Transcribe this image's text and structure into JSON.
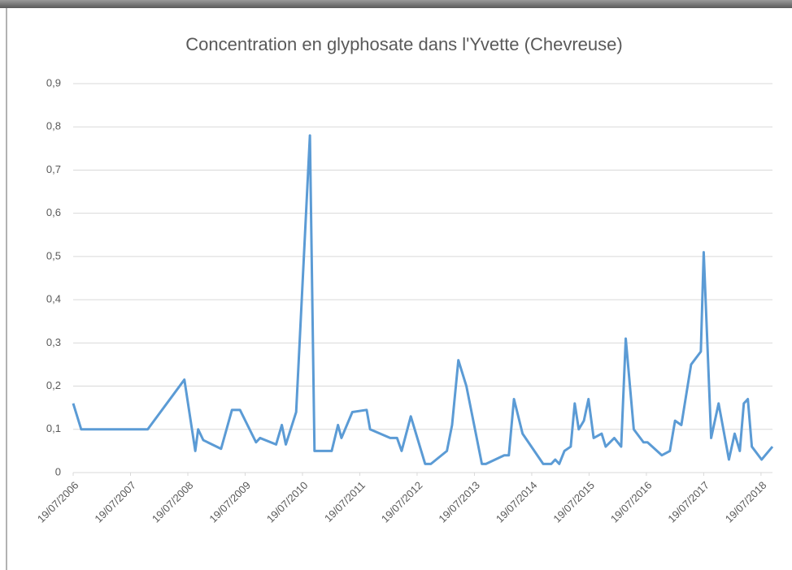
{
  "chart_data": {
    "type": "line",
    "title": "Concentration en glyphosate dans l'Yvette (Chevreuse)",
    "x": [
      2006.55,
      2006.69,
      2007.85,
      2008.49,
      2008.68,
      2008.73,
      2008.82,
      2009.13,
      2009.32,
      2009.46,
      2009.74,
      2009.81,
      2010.09,
      2010.19,
      2010.26,
      2010.44,
      2010.68,
      2010.76,
      2011.06,
      2011.17,
      2011.23,
      2011.42,
      2011.67,
      2011.73,
      2012.08,
      2012.2,
      2012.28,
      2012.44,
      2012.69,
      2012.79,
      2013.07,
      2013.16,
      2013.27,
      2013.41,
      2013.68,
      2013.75,
      2014.07,
      2014.15,
      2014.24,
      2014.39,
      2014.75,
      2014.89,
      2014.96,
      2015.03,
      2015.12,
      2015.23,
      2015.3,
      2015.37,
      2015.46,
      2015.54,
      2015.63,
      2015.77,
      2015.84,
      2015.99,
      2016.11,
      2016.19,
      2016.33,
      2016.5,
      2016.57,
      2016.82,
      2016.96,
      2017.05,
      2017.16,
      2017.33,
      2017.5,
      2017.55,
      2017.68,
      2017.81,
      2017.99,
      2018.09,
      2018.18,
      2018.25,
      2018.32,
      2018.39,
      2018.56,
      2018.75
    ],
    "series": [
      {
        "name": "Glyphosate",
        "color": "#5b9bd5",
        "values": [
          0.16,
          0.1,
          0.1,
          0.215,
          0.05,
          0.1,
          0.075,
          0.055,
          0.145,
          0.145,
          0.07,
          0.08,
          0.065,
          0.11,
          0.065,
          0.14,
          0.78,
          0.05,
          0.05,
          0.11,
          0.08,
          0.14,
          0.145,
          0.1,
          0.08,
          0.08,
          0.05,
          0.13,
          0.02,
          0.02,
          0.05,
          0.11,
          0.26,
          0.2,
          0.02,
          0.02,
          0.04,
          0.04,
          0.17,
          0.09,
          0.02,
          0.02,
          0.03,
          0.02,
          0.05,
          0.06,
          0.16,
          0.1,
          0.12,
          0.17,
          0.08,
          0.09,
          0.06,
          0.08,
          0.06,
          0.31,
          0.1,
          0.07,
          0.07,
          0.04,
          0.05,
          0.12,
          0.11,
          0.25,
          0.28,
          0.51,
          0.08,
          0.16,
          0.03,
          0.09,
          0.05,
          0.16,
          0.17,
          0.06,
          0.03,
          0.06
        ]
      }
    ],
    "xlim": [
      2006.55,
      2018.75
    ],
    "xticks": [
      {
        "value": 2006.55,
        "label": "19/07/2006"
      },
      {
        "value": 2007.55,
        "label": "19/07/2007"
      },
      {
        "value": 2008.55,
        "label": "19/07/2008"
      },
      {
        "value": 2009.55,
        "label": "19/07/2009"
      },
      {
        "value": 2010.55,
        "label": "19/07/2010"
      },
      {
        "value": 2011.55,
        "label": "19/07/2011"
      },
      {
        "value": 2012.55,
        "label": "19/07/2012"
      },
      {
        "value": 2013.55,
        "label": "19/07/2013"
      },
      {
        "value": 2014.55,
        "label": "19/07/2014"
      },
      {
        "value": 2015.55,
        "label": "19/07/2015"
      },
      {
        "value": 2016.55,
        "label": "19/07/2016"
      },
      {
        "value": 2017.55,
        "label": "19/07/2017"
      },
      {
        "value": 2018.55,
        "label": "19/07/2018"
      }
    ],
    "ylim": [
      0,
      0.9
    ],
    "yticks": [
      0,
      {
        "value": 0.1,
        "label": "0,1"
      },
      {
        "value": 0.2,
        "label": "0,2"
      },
      {
        "value": 0.3,
        "label": "0,3"
      },
      {
        "value": 0.4,
        "label": "0,4"
      },
      {
        "value": 0.5,
        "label": "0,5"
      },
      {
        "value": 0.6,
        "label": "0,6"
      },
      {
        "value": 0.7,
        "label": "0,7"
      },
      {
        "value": 0.8,
        "label": "0,8"
      },
      {
        "value": 0.9,
        "label": "0,9"
      }
    ],
    "grid": true
  }
}
